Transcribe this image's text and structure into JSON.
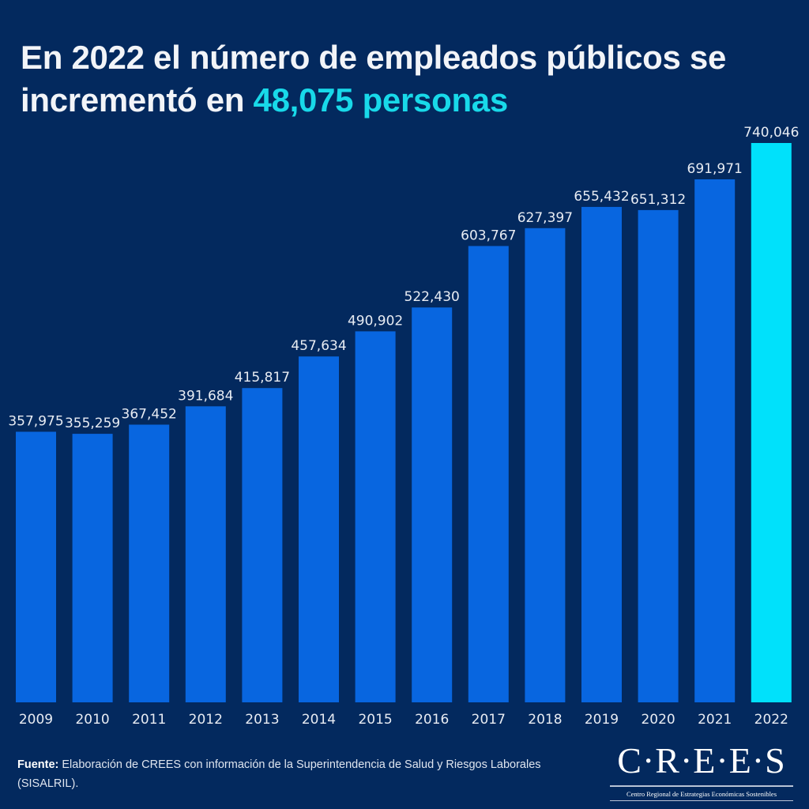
{
  "header": {
    "title_part1": "En 2022 el número de empleados públicos se incrementó en ",
    "title_highlight": "48,075 personas"
  },
  "colors": {
    "background": "#03295e",
    "bar": "#0866e0",
    "bar_highlight": "#00e1fb",
    "highlight_text": "#18d9e9",
    "text": "#e8ecf3"
  },
  "chart_data": {
    "type": "bar",
    "title": "En 2022 el número de empleados públicos se incrementó en 48,075 personas",
    "xlabel": "",
    "ylabel": "",
    "categories": [
      "2009",
      "2010",
      "2011",
      "2012",
      "2013",
      "2014",
      "2015",
      "2016",
      "2017",
      "2018",
      "2019",
      "2020",
      "2021",
      "2022"
    ],
    "values": [
      357975,
      355259,
      367452,
      391684,
      415817,
      457634,
      490902,
      522430,
      603767,
      627397,
      655432,
      651312,
      691971,
      740046
    ],
    "value_labels": [
      "357,975",
      "355,259",
      "367,452",
      "391,684",
      "415,817",
      "457,634",
      "490,902",
      "522,430",
      "603,767",
      "627,397",
      "655,432",
      "651,312",
      "691,971",
      "740,046"
    ],
    "highlight_category": "2022",
    "ylim": [
      0,
      740046
    ],
    "grid": false,
    "legend": "none",
    "y_axis_visible": false
  },
  "footer": {
    "source_label": "Fuente:",
    "source_text": " Elaboración de CREES con información de la Superintendencia de Salud y Riesgos Laborales (SISALRIL)."
  },
  "logo": {
    "name": "C·R·E·E·S",
    "subtitle": "Centro Regional de Estrategias Económicas Sostenibles"
  }
}
